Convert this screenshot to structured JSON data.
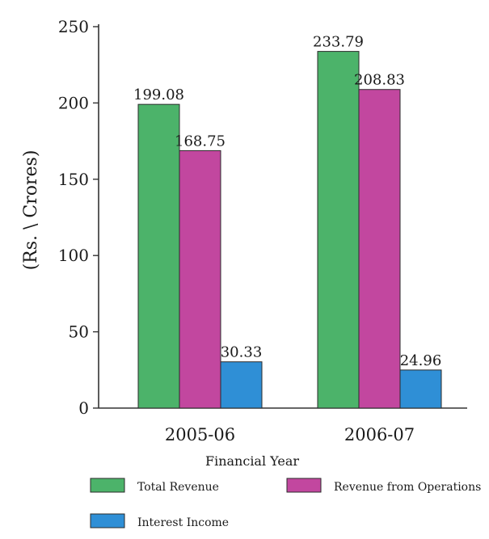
{
  "chart_data": {
    "type": "bar",
    "title": "",
    "xlabel": "Financial Year",
    "ylabel": "(Rs. \\ Crores)",
    "ylim": [
      0,
      250
    ],
    "yticks": [
      0,
      50,
      100,
      150,
      200,
      250
    ],
    "categories": [
      "2005-06",
      "2006-07"
    ],
    "series": [
      {
        "name": "Total Revenue",
        "values": [
          199.08,
          233.79
        ],
        "value_labels": [
          "199.08",
          "233.79"
        ],
        "color": "#4cb36a"
      },
      {
        "name": "Revenue from Operations",
        "values": [
          168.75,
          208.83
        ],
        "value_labels": [
          "168.75",
          "208.83"
        ],
        "color": "#c2479f"
      },
      {
        "name": "Interest Income",
        "values": [
          30.33,
          24.96
        ],
        "value_labels": [
          "30.33",
          "24.96"
        ],
        "color": "#2f8fd6"
      }
    ],
    "legend": "bottom",
    "grid": false
  }
}
